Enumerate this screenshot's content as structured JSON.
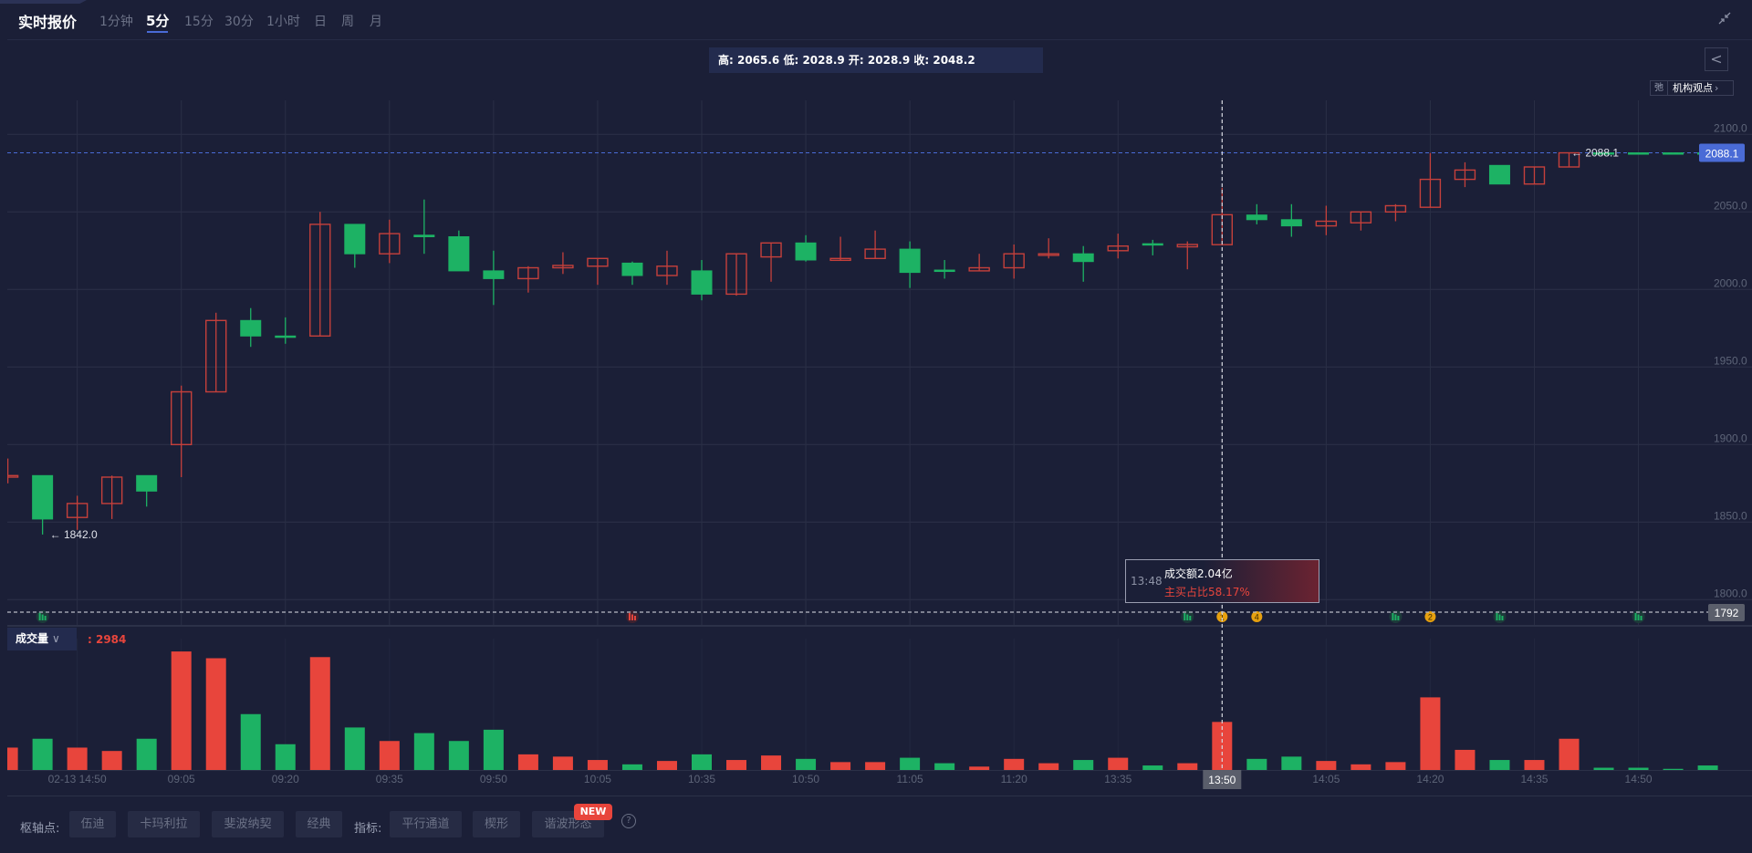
{
  "header": {
    "title": "实时报价",
    "tabs": [
      {
        "label": "1分钟",
        "active": false
      },
      {
        "label": "5分",
        "active": true
      },
      {
        "label": "15分",
        "active": false
      },
      {
        "label": "30分",
        "active": false
      },
      {
        "label": "1小时",
        "active": false
      },
      {
        "label": "日",
        "active": false
      },
      {
        "label": "周",
        "active": false
      },
      {
        "label": "月",
        "active": false
      }
    ],
    "collapse_icon": "collapse-arrows-icon"
  },
  "ohlc_bar": "高: 2065.6 低: 2028.9 开: 2028.9 收: 2048.2",
  "back_icon": "<",
  "view_button": {
    "icon_text": "弛",
    "label": "机构观点",
    "chevron": "›"
  },
  "tooltip": {
    "time": "13:48",
    "line1": "成交额2.04亿",
    "line2": "主买占比58.17%"
  },
  "volume_panel": {
    "selector_label": "成交量",
    "value": ": 2984"
  },
  "toolbar": {
    "pivot_label": "枢轴点:",
    "pivot_buttons": [
      "伍迪",
      "卡玛利拉",
      "斐波纳契",
      "经典"
    ],
    "indicator_label": "指标:",
    "indicator_buttons": [
      "平行通道",
      "楔形",
      "谐波形态"
    ],
    "new_badge": "NEW",
    "help_icon": "?"
  },
  "colors": {
    "up": "#e8453c",
    "down": "#1db264",
    "accent": "#4a6bd6",
    "background": "#1b1f37"
  },
  "chart_data": {
    "type": "candlestick",
    "y_ticks": [
      "2100.0",
      "2050.0",
      "2000.0",
      "1950.0",
      "1900.0",
      "1850.0",
      "1800.0"
    ],
    "y_tick_values": [
      2100,
      2050,
      2000,
      1950,
      1900,
      1850,
      1800
    ],
    "last_price": "2088.1",
    "last_price_label": "2088.1",
    "low_marker_label": "1842.0",
    "crosshair": {
      "index": 35,
      "time_label": "13:50",
      "price_label": "1792"
    },
    "x_labels": [
      {
        "at": 2,
        "label": "02-13 14:50"
      },
      {
        "at": 5,
        "label": "09:05"
      },
      {
        "at": 8,
        "label": "09:20"
      },
      {
        "at": 11,
        "label": "09:35"
      },
      {
        "at": 14,
        "label": "09:50"
      },
      {
        "at": 17,
        "label": "10:05"
      },
      {
        "at": 20,
        "label": "10:35"
      },
      {
        "at": 23,
        "label": "10:50"
      },
      {
        "at": 26,
        "label": "11:05"
      },
      {
        "at": 29,
        "label": "11:20"
      },
      {
        "at": 32,
        "label": "13:35"
      },
      {
        "at": 35,
        "label": "13:50"
      },
      {
        "at": 38,
        "label": "14:05"
      },
      {
        "at": 41,
        "label": "14:20"
      },
      {
        "at": 44,
        "label": "14:35"
      },
      {
        "at": 47,
        "label": "14:50"
      }
    ],
    "markers": [
      {
        "at": 1,
        "kind": "green"
      },
      {
        "at": 18,
        "kind": "red"
      },
      {
        "at": 34,
        "kind": "green"
      },
      {
        "at": 35,
        "kind": "orange",
        "text": "1"
      },
      {
        "at": 36,
        "kind": "orange",
        "text": "4"
      },
      {
        "at": 40,
        "kind": "green"
      },
      {
        "at": 41,
        "kind": "orange",
        "text": "2"
      },
      {
        "at": 43,
        "kind": "green"
      },
      {
        "at": 47,
        "kind": "green"
      }
    ],
    "candles": [
      {
        "o": 1879,
        "h": 1891,
        "l": 1875,
        "c": 1880,
        "v": 1390,
        "dir": "up"
      },
      {
        "o": 1880,
        "h": 1880,
        "l": 1842,
        "c": 1852,
        "v": 1940,
        "dir": "down"
      },
      {
        "o": 1853,
        "h": 1867,
        "l": 1845,
        "c": 1862,
        "v": 1390,
        "dir": "up"
      },
      {
        "o": 1862,
        "h": 1880,
        "l": 1852,
        "c": 1879,
        "v": 1180,
        "dir": "up"
      },
      {
        "o": 1880,
        "h": 1880,
        "l": 1860,
        "c": 1870,
        "v": 1940,
        "dir": "down"
      },
      {
        "o": 1900,
        "h": 1938,
        "l": 1879,
        "c": 1934,
        "v": 7360,
        "dir": "up"
      },
      {
        "o": 1934,
        "h": 1985,
        "l": 1934,
        "c": 1980,
        "v": 6940,
        "dir": "up"
      },
      {
        "o": 1980,
        "h": 1988,
        "l": 1963,
        "c": 1970,
        "v": 3470,
        "dir": "down"
      },
      {
        "o": 1970,
        "h": 1982,
        "l": 1965,
        "c": 1969.6,
        "v": 1600,
        "dir": "down"
      },
      {
        "o": 1970,
        "h": 2050,
        "l": 1970,
        "c": 2042,
        "v": 7010,
        "dir": "up"
      },
      {
        "o": 2042,
        "h": 2042,
        "l": 2014,
        "c": 2023,
        "v": 2640,
        "dir": "down"
      },
      {
        "o": 2023,
        "h": 2045,
        "l": 2017,
        "c": 2036,
        "v": 1800,
        "dir": "up"
      },
      {
        "o": 2035,
        "h": 2058,
        "l": 2023,
        "c": 2034,
        "v": 2290,
        "dir": "down"
      },
      {
        "o": 2034,
        "h": 2038,
        "l": 2012,
        "c": 2012,
        "v": 1800,
        "dir": "down"
      },
      {
        "o": 2012,
        "h": 2025,
        "l": 1990,
        "c": 2007,
        "v": 2500,
        "dir": "down"
      },
      {
        "o": 2007,
        "h": 2015,
        "l": 1998,
        "c": 2014,
        "v": 970,
        "dir": "up"
      },
      {
        "o": 2014,
        "h": 2024,
        "l": 2010,
        "c": 2015.5,
        "v": 830,
        "dir": "up"
      },
      {
        "o": 2015,
        "h": 2020,
        "l": 2003,
        "c": 2020,
        "v": 620,
        "dir": "up"
      },
      {
        "o": 2017,
        "h": 2018,
        "l": 2003,
        "c": 2009,
        "v": 350,
        "dir": "down"
      },
      {
        "o": 2009,
        "h": 2025,
        "l": 2003,
        "c": 2015,
        "v": 560,
        "dir": "up"
      },
      {
        "o": 2012,
        "h": 2019,
        "l": 1993,
        "c": 1997,
        "v": 970,
        "dir": "down"
      },
      {
        "o": 1997,
        "h": 2023,
        "l": 1996,
        "c": 2023,
        "v": 620,
        "dir": "up"
      },
      {
        "o": 2021,
        "h": 2030,
        "l": 2005,
        "c": 2030,
        "v": 900,
        "dir": "up"
      },
      {
        "o": 2030,
        "h": 2035,
        "l": 2018,
        "c": 2019,
        "v": 690,
        "dir": "down"
      },
      {
        "o": 2018.8,
        "h": 2034,
        "l": 2018.8,
        "c": 2020,
        "v": 490,
        "dir": "up"
      },
      {
        "o": 2020,
        "h": 2038,
        "l": 2020,
        "c": 2026,
        "v": 490,
        "dir": "up"
      },
      {
        "o": 2026,
        "h": 2031,
        "l": 2001,
        "c": 2011,
        "v": 760,
        "dir": "down"
      },
      {
        "o": 2012.5,
        "h": 2019,
        "l": 2007,
        "c": 2012,
        "v": 420,
        "dir": "down"
      },
      {
        "o": 2012,
        "h": 2023,
        "l": 2012,
        "c": 2014,
        "v": 210,
        "dir": "up"
      },
      {
        "o": 2014,
        "h": 2029,
        "l": 2007,
        "c": 2023,
        "v": 690,
        "dir": "up"
      },
      {
        "o": 2022,
        "h": 2033,
        "l": 2020,
        "c": 2023,
        "v": 420,
        "dir": "up"
      },
      {
        "o": 2023,
        "h": 2028,
        "l": 2005,
        "c": 2018,
        "v": 620,
        "dir": "down"
      },
      {
        "o": 2025,
        "h": 2036,
        "l": 2020,
        "c": 2028,
        "v": 760,
        "dir": "up"
      },
      {
        "o": 2029.5,
        "h": 2032,
        "l": 2022,
        "c": 2029,
        "v": 280,
        "dir": "down"
      },
      {
        "o": 2027.5,
        "h": 2031,
        "l": 2013,
        "c": 2029,
        "v": 420,
        "dir": "up"
      },
      {
        "o": 2028.9,
        "h": 2065.6,
        "l": 2028.9,
        "c": 2048.2,
        "v": 2984,
        "dir": "up"
      },
      {
        "o": 2048,
        "h": 2055,
        "l": 2042,
        "c": 2045,
        "v": 690,
        "dir": "down"
      },
      {
        "o": 2045,
        "h": 2055,
        "l": 2034,
        "c": 2041,
        "v": 830,
        "dir": "down"
      },
      {
        "o": 2041,
        "h": 2054,
        "l": 2035,
        "c": 2044,
        "v": 560,
        "dir": "up"
      },
      {
        "o": 2043,
        "h": 2050,
        "l": 2038,
        "c": 2050,
        "v": 350,
        "dir": "up"
      },
      {
        "o": 2050,
        "h": 2055,
        "l": 2044,
        "c": 2054,
        "v": 490,
        "dir": "up"
      },
      {
        "o": 2053,
        "h": 2088,
        "l": 2053,
        "c": 2071,
        "v": 4510,
        "dir": "up"
      },
      {
        "o": 2071,
        "h": 2082,
        "l": 2066,
        "c": 2077,
        "v": 1250,
        "dir": "up"
      },
      {
        "o": 2080,
        "h": 2080,
        "l": 2068,
        "c": 2068,
        "v": 620,
        "dir": "down"
      },
      {
        "o": 2068,
        "h": 2079,
        "l": 2068,
        "c": 2079,
        "v": 620,
        "dir": "up"
      },
      {
        "o": 2079,
        "h": 2088,
        "l": 2079,
        "c": 2088.1,
        "v": 1940,
        "dir": "up"
      },
      {
        "o": 2088.1,
        "h": 2088.1,
        "l": 2088.1,
        "c": 2088.1,
        "v": 140,
        "dir": "down"
      },
      {
        "o": 2088.1,
        "h": 2088.1,
        "l": 2088.1,
        "c": 2088.1,
        "v": 140,
        "dir": "down"
      },
      {
        "o": 2088.1,
        "h": 2088.1,
        "l": 2088.1,
        "c": 2088.1,
        "v": 70,
        "dir": "down"
      },
      {
        "o": 2088.1,
        "h": 2088.1,
        "l": 2088.1,
        "c": 2088.1,
        "v": 280,
        "dir": "down"
      }
    ]
  }
}
